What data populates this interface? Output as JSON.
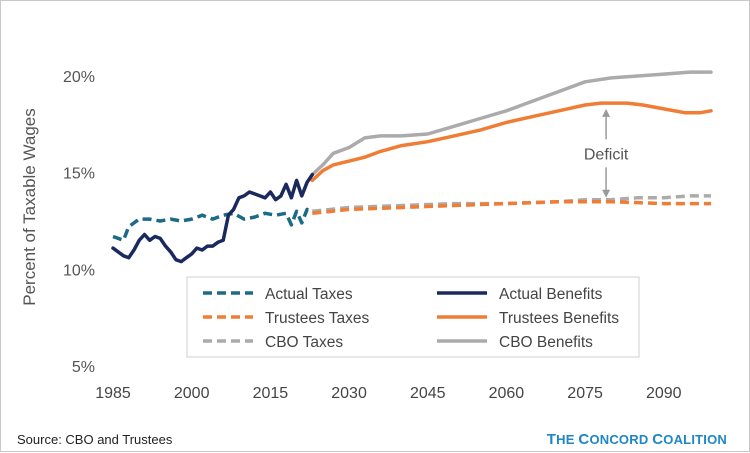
{
  "source": "Source: CBO and Trustees",
  "logo": "THE CONCORD COALITION",
  "chart_data": {
    "type": "line",
    "title": "",
    "xlabel": "",
    "ylabel": "Percent of Taxable Wages",
    "xlim": [
      1985,
      2099
    ],
    "ylim": [
      5,
      21
    ],
    "x_ticks": [
      1985,
      2000,
      2015,
      2030,
      2045,
      2060,
      2075,
      2090
    ],
    "y_ticks": [
      {
        "value": 5,
        "label": "5%"
      },
      {
        "value": 10,
        "label": "10%"
      },
      {
        "value": 15,
        "label": "15%"
      },
      {
        "value": 20,
        "label": "20%"
      }
    ],
    "grid": false,
    "legend_position": "bottom-center",
    "series": [
      {
        "name": "Actual Taxes",
        "color": "#1b6a86",
        "dash": true,
        "points": [
          [
            1985,
            11.7
          ],
          [
            1987,
            11.5
          ],
          [
            1988,
            12.2
          ],
          [
            1990,
            12.6
          ],
          [
            1992,
            12.6
          ],
          [
            1994,
            12.5
          ],
          [
            1996,
            12.6
          ],
          [
            1998,
            12.5
          ],
          [
            2000,
            12.6
          ],
          [
            2002,
            12.8
          ],
          [
            2004,
            12.6
          ],
          [
            2006,
            12.8
          ],
          [
            2008,
            12.9
          ],
          [
            2010,
            12.6
          ],
          [
            2012,
            12.7
          ],
          [
            2014,
            12.9
          ],
          [
            2016,
            12.8
          ],
          [
            2018,
            12.9
          ],
          [
            2019,
            12.3
          ],
          [
            2020,
            13.0
          ],
          [
            2021,
            12.4
          ],
          [
            2022,
            13.1
          ],
          [
            2023,
            13.0
          ]
        ]
      },
      {
        "name": "Actual Benefits",
        "color": "#1a2a5e",
        "dash": false,
        "points": [
          [
            1985,
            11.1
          ],
          [
            1986,
            10.9
          ],
          [
            1987,
            10.7
          ],
          [
            1988,
            10.6
          ],
          [
            1989,
            11.0
          ],
          [
            1990,
            11.5
          ],
          [
            1991,
            11.8
          ],
          [
            1992,
            11.5
          ],
          [
            1993,
            11.7
          ],
          [
            1994,
            11.6
          ],
          [
            1995,
            11.2
          ],
          [
            1996,
            10.9
          ],
          [
            1997,
            10.5
          ],
          [
            1998,
            10.4
          ],
          [
            1999,
            10.6
          ],
          [
            2000,
            10.8
          ],
          [
            2001,
            11.1
          ],
          [
            2002,
            11.0
          ],
          [
            2003,
            11.2
          ],
          [
            2004,
            11.2
          ],
          [
            2005,
            11.4
          ],
          [
            2006,
            11.5
          ],
          [
            2007,
            12.8
          ],
          [
            2008,
            13.1
          ],
          [
            2009,
            13.7
          ],
          [
            2010,
            13.8
          ],
          [
            2011,
            14.0
          ],
          [
            2012,
            13.9
          ],
          [
            2013,
            13.8
          ],
          [
            2014,
            13.7
          ],
          [
            2015,
            14.0
          ],
          [
            2016,
            13.6
          ],
          [
            2017,
            13.8
          ],
          [
            2018,
            14.4
          ],
          [
            2019,
            13.7
          ],
          [
            2020,
            14.6
          ],
          [
            2021,
            13.8
          ],
          [
            2022,
            14.5
          ],
          [
            2023,
            14.9
          ]
        ]
      },
      {
        "name": "Trustees Taxes",
        "color": "#ef7d35",
        "dash": true,
        "points": [
          [
            2023,
            12.9
          ],
          [
            2030,
            13.1
          ],
          [
            2040,
            13.2
          ],
          [
            2050,
            13.3
          ],
          [
            2060,
            13.4
          ],
          [
            2070,
            13.5
          ],
          [
            2080,
            13.5
          ],
          [
            2090,
            13.4
          ],
          [
            2099,
            13.4
          ]
        ]
      },
      {
        "name": "Trustees Benefits",
        "color": "#ef7d35",
        "dash": false,
        "points": [
          [
            2023,
            14.6
          ],
          [
            2025,
            15.1
          ],
          [
            2027,
            15.4
          ],
          [
            2030,
            15.6
          ],
          [
            2033,
            15.8
          ],
          [
            2036,
            16.1
          ],
          [
            2040,
            16.4
          ],
          [
            2045,
            16.6
          ],
          [
            2050,
            16.9
          ],
          [
            2055,
            17.2
          ],
          [
            2060,
            17.6
          ],
          [
            2065,
            17.9
          ],
          [
            2070,
            18.2
          ],
          [
            2075,
            18.5
          ],
          [
            2078,
            18.6
          ],
          [
            2080,
            18.6
          ],
          [
            2083,
            18.6
          ],
          [
            2086,
            18.5
          ],
          [
            2090,
            18.3
          ],
          [
            2094,
            18.1
          ],
          [
            2097,
            18.1
          ],
          [
            2099,
            18.2
          ]
        ]
      },
      {
        "name": "CBO Taxes",
        "color": "#ababab",
        "dash": true,
        "points": [
          [
            2023,
            13.0
          ],
          [
            2030,
            13.2
          ],
          [
            2040,
            13.3
          ],
          [
            2050,
            13.4
          ],
          [
            2060,
            13.4
          ],
          [
            2070,
            13.5
          ],
          [
            2075,
            13.6
          ],
          [
            2080,
            13.6
          ],
          [
            2085,
            13.7
          ],
          [
            2090,
            13.7
          ],
          [
            2095,
            13.8
          ],
          [
            2099,
            13.8
          ]
        ]
      },
      {
        "name": "CBO Benefits",
        "color": "#ababab",
        "dash": false,
        "points": [
          [
            2023,
            14.9
          ],
          [
            2025,
            15.4
          ],
          [
            2027,
            16.0
          ],
          [
            2030,
            16.3
          ],
          [
            2033,
            16.8
          ],
          [
            2036,
            16.9
          ],
          [
            2040,
            16.9
          ],
          [
            2045,
            17.0
          ],
          [
            2050,
            17.4
          ],
          [
            2055,
            17.8
          ],
          [
            2060,
            18.2
          ],
          [
            2065,
            18.7
          ],
          [
            2070,
            19.2
          ],
          [
            2075,
            19.7
          ],
          [
            2080,
            19.9
          ],
          [
            2085,
            20.0
          ],
          [
            2090,
            20.1
          ],
          [
            2095,
            20.2
          ],
          [
            2099,
            20.2
          ]
        ]
      }
    ],
    "annotation": {
      "label": "Deficit",
      "x": 2079,
      "y_top": 18.4,
      "y_bottom": 13.6
    }
  }
}
